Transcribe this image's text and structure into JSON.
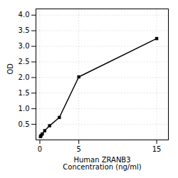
{
  "chart_data": {
    "type": "line",
    "x": [
      0.078,
      0.156,
      0.313,
      0.625,
      1.25,
      2.5,
      5.0,
      15.0
    ],
    "values": [
      0.105,
      0.14,
      0.19,
      0.295,
      0.455,
      0.72,
      2.02,
      3.25
    ],
    "xlabel": "Human ZRANB3\nConcentration (ng/ml)",
    "ylabel": "OD",
    "xlim": [
      -0.5,
      16.5
    ],
    "ylim": [
      0,
      4.2
    ],
    "xticks": [
      0,
      5,
      15
    ],
    "yticks": [
      0.5,
      {
        "value": 1,
        "label": "1.0"
      },
      1.5,
      {
        "value": 2,
        "label": "2.0"
      },
      2.5,
      {
        "value": 3,
        "label": "3.0"
      },
      3.5,
      {
        "value": 4,
        "label": "4.0"
      }
    ],
    "grid": true,
    "marker": "square"
  }
}
